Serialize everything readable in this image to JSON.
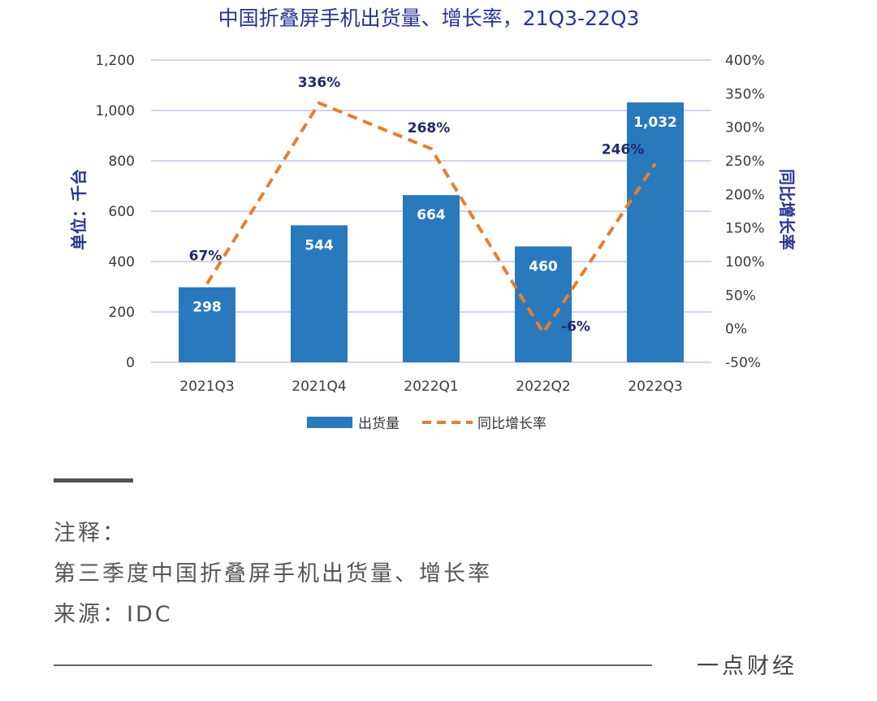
{
  "colors": {
    "bar": "#2979bd",
    "line": "#e87d2b",
    "title": "#283593",
    "grid": "#c9c4ef"
  },
  "chart_data": {
    "type": "bar",
    "title": "中国折叠屏手机出货量、增长率，21Q3-22Q3",
    "ylabel": "单位：千台",
    "y2label": "同比增长率",
    "categories": [
      "2021Q3",
      "2021Q4",
      "2022Q1",
      "2022Q2",
      "2022Q3"
    ],
    "ylim": [
      0,
      1200
    ],
    "y_ticks": [
      "0",
      "200",
      "400",
      "600",
      "800",
      "1,000",
      "1,200"
    ],
    "y2lim": [
      -50,
      400
    ],
    "y2_ticks": [
      "-50%",
      "0%",
      "50%",
      "100%",
      "150%",
      "200%",
      "250%",
      "300%",
      "350%",
      "400%"
    ],
    "series": [
      {
        "name": "出货量",
        "type": "bar",
        "values": [
          298,
          544,
          664,
          460,
          1032
        ],
        "labels": [
          "298",
          "544",
          "664",
          "460",
          "1,032"
        ]
      },
      {
        "name": "同比增长率",
        "type": "line",
        "axis": "right",
        "values": [
          67,
          336,
          268,
          -6,
          246
        ],
        "labels": [
          "67%",
          "336%",
          "268%",
          "-6%",
          "246%"
        ]
      }
    ],
    "grid": true,
    "legend": "bottom-center"
  },
  "notes": {
    "heading": "注释：",
    "line1": "第三季度中国折叠屏手机出货量、增长率",
    "line2": "来源：IDC"
  },
  "brand": "一点财经"
}
